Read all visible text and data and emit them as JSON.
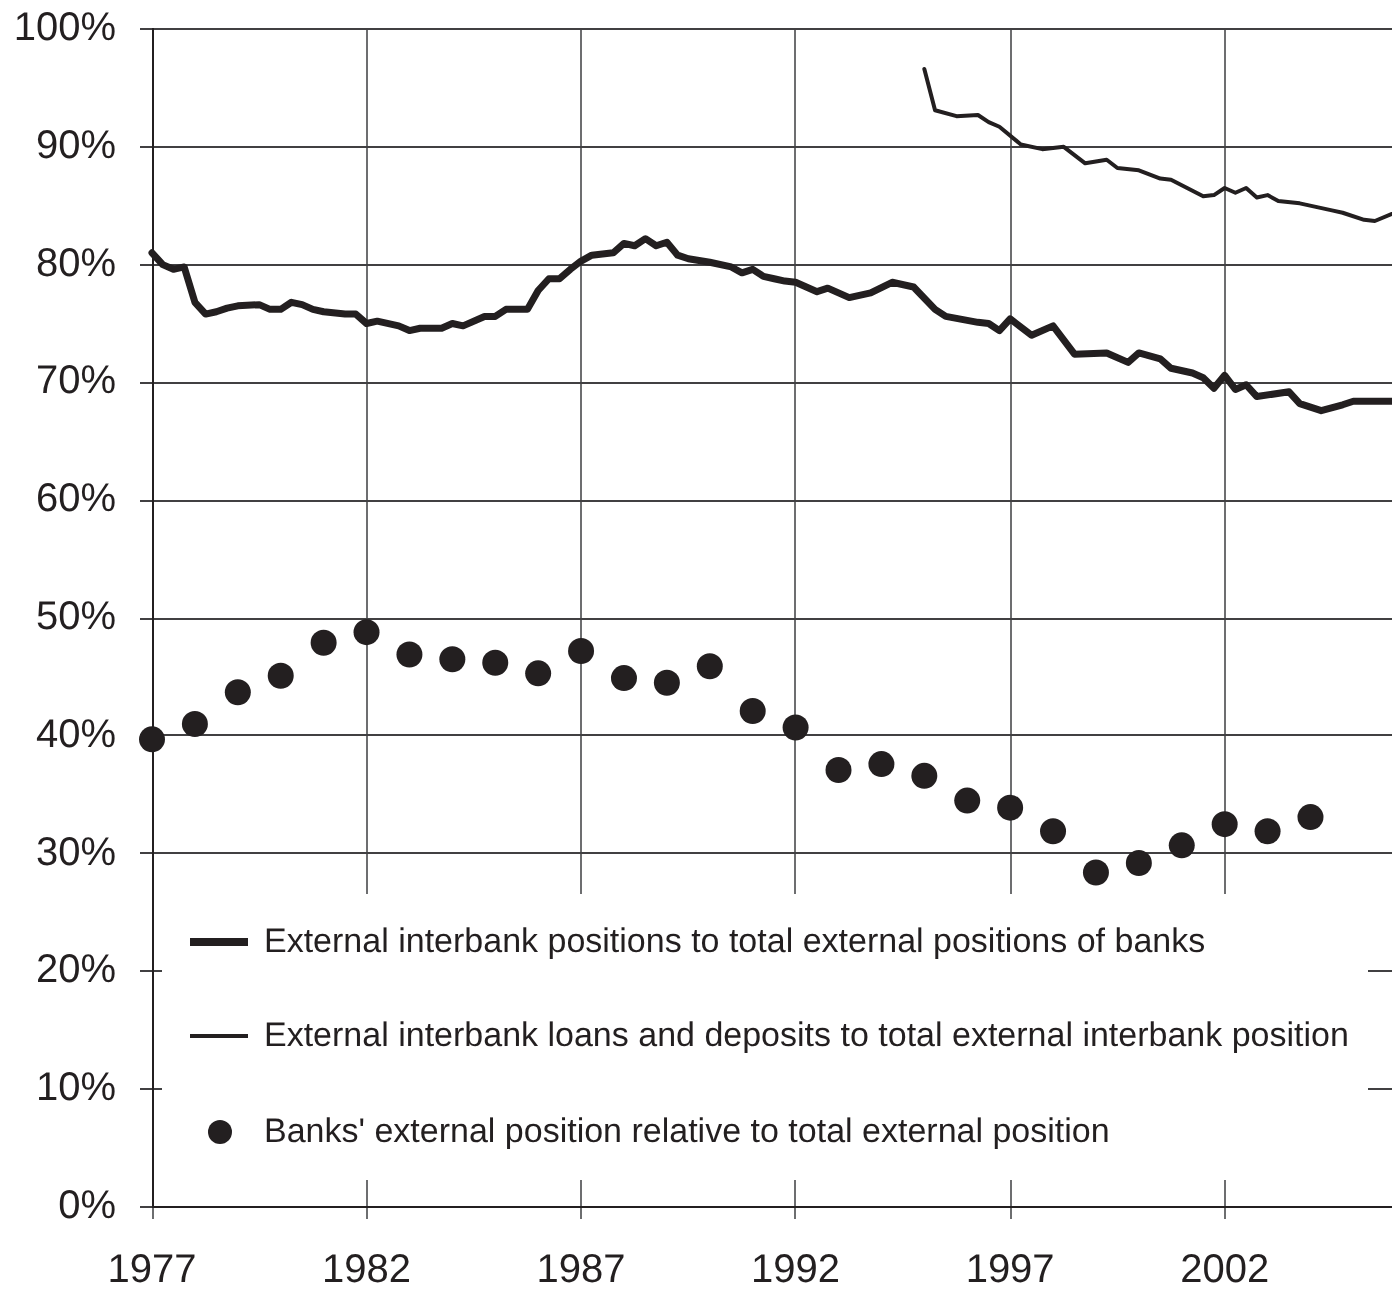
{
  "chart_data": {
    "type": "line",
    "xlim": [
      1977,
      2005.9
    ],
    "xticks": [
      1977,
      1982,
      1987,
      1992,
      1997,
      2002
    ],
    "ylim": [
      0,
      100
    ],
    "yticks": [
      {
        "value": 0,
        "label": "0%"
      },
      {
        "value": 10,
        "label": "10%"
      },
      {
        "value": 20,
        "label": "20%"
      },
      {
        "value": 30,
        "label": "30%"
      },
      {
        "value": 40,
        "label": "40%"
      },
      {
        "value": 50,
        "label": "50%"
      },
      {
        "value": 60,
        "label": "60%"
      },
      {
        "value": 70,
        "label": "70%"
      },
      {
        "value": 80,
        "label": "80%"
      },
      {
        "value": 90,
        "label": "90%"
      },
      {
        "value": 100,
        "label": "100%"
      }
    ],
    "grid": true,
    "legend": "bottom",
    "series": [
      {
        "name": "External interbank positions to total external positions of banks",
        "color": "#231f20",
        "x": [
          1977,
          1977.25,
          1977.5,
          1977.75,
          1978,
          1978.25,
          1978.5,
          1978.75,
          1979,
          1979.5,
          1979.75,
          1980,
          1980.25,
          1980.5,
          1980.75,
          1981,
          1981.5,
          1981.75,
          1982,
          1982.25,
          1982.75,
          1983,
          1983.25,
          1983.75,
          1984,
          1984.25,
          1984.75,
          1985,
          1985.25,
          1985.75,
          1986,
          1986.25,
          1986.5,
          1986.75,
          1987,
          1987.25,
          1987.75,
          1988,
          1988.25,
          1988.5,
          1988.75,
          1989,
          1989.25,
          1989.5,
          1990,
          1990.5,
          1990.75,
          1991,
          1991.25,
          1991.5,
          1991.75,
          1992,
          1992.5,
          1992.75,
          1993.25,
          1993.75,
          1994.25,
          1994.75,
          1995.25,
          1995.5,
          1996.25,
          1996.5,
          1996.75,
          1997,
          1997.5,
          1998,
          1998.5,
          1999.25,
          1999.75,
          2000,
          2000.5,
          2000.75,
          2001.25,
          2001.5,
          2001.75,
          2002,
          2002.25,
          2002.5,
          2002.75,
          2003.5,
          2003.75,
          2004.25,
          2004.75,
          2005,
          2005.9
        ],
        "values": [
          81.0,
          80.0,
          79.6,
          79.8,
          76.8,
          75.8,
          76.0,
          76.3,
          76.5,
          76.6,
          76.2,
          76.2,
          76.8,
          76.6,
          76.2,
          76.0,
          75.8,
          75.8,
          75.0,
          75.2,
          74.8,
          74.4,
          74.6,
          74.6,
          75.0,
          74.8,
          75.6,
          75.6,
          76.2,
          76.2,
          77.8,
          78.8,
          78.8,
          79.6,
          80.3,
          80.8,
          81.0,
          81.8,
          81.6,
          82.2,
          81.6,
          81.9,
          80.8,
          80.5,
          80.2,
          79.8,
          79.3,
          79.6,
          79.0,
          78.8,
          78.6,
          78.5,
          77.7,
          78.0,
          77.2,
          77.6,
          78.5,
          78.1,
          76.2,
          75.6,
          75.1,
          75.0,
          74.4,
          75.4,
          74.0,
          74.8,
          72.4,
          72.5,
          71.7,
          72.5,
          72.0,
          71.2,
          70.8,
          70.4,
          69.5,
          70.6,
          69.4,
          69.8,
          68.8,
          69.2,
          68.2,
          67.6,
          68.1,
          68.4,
          68.4
        ]
      },
      {
        "name": "External interbank loans and deposits to total external interbank position",
        "color": "#231f20",
        "x": [
          1995,
          1995.25,
          1995.75,
          1996.25,
          1996.5,
          1996.75,
          1997.25,
          1997.75,
          1998.25,
          1998.75,
          1999.25,
          1999.5,
          2000,
          2000.5,
          2000.75,
          2001.5,
          2001.75,
          2002,
          2002.25,
          2002.5,
          2002.75,
          2003,
          2003.25,
          2003.75,
          2004.5,
          2004.75,
          2005.25,
          2005.5,
          2005.9
        ],
        "values": [
          96.6,
          93.1,
          92.6,
          92.7,
          92.1,
          91.7,
          90.2,
          89.8,
          90.0,
          88.6,
          88.9,
          88.2,
          88.0,
          87.3,
          87.2,
          85.8,
          85.9,
          86.5,
          86.1,
          86.5,
          85.7,
          85.9,
          85.4,
          85.2,
          84.6,
          84.4,
          83.8,
          83.7,
          84.3
        ]
      },
      {
        "name": "Banks' external position relative to total external position",
        "type": "scatter",
        "color": "#231f20",
        "marker": "circle",
        "x": [
          1977,
          1978,
          1979,
          1980,
          1981,
          1982,
          1983,
          1984,
          1985,
          1986,
          1987,
          1988,
          1989,
          1990,
          1991,
          1992,
          1993,
          1994,
          1995,
          1996,
          1997,
          1998,
          1999,
          2000,
          2001,
          2002,
          2003,
          2004
        ],
        "values": [
          39.7,
          41.0,
          43.7,
          45.1,
          47.9,
          48.8,
          46.9,
          46.5,
          46.2,
          45.3,
          47.2,
          44.9,
          44.5,
          45.9,
          42.1,
          40.7,
          37.1,
          37.6,
          36.6,
          34.5,
          33.9,
          31.9,
          28.4,
          29.2,
          30.7,
          32.5,
          31.9,
          33.1
        ]
      }
    ]
  }
}
